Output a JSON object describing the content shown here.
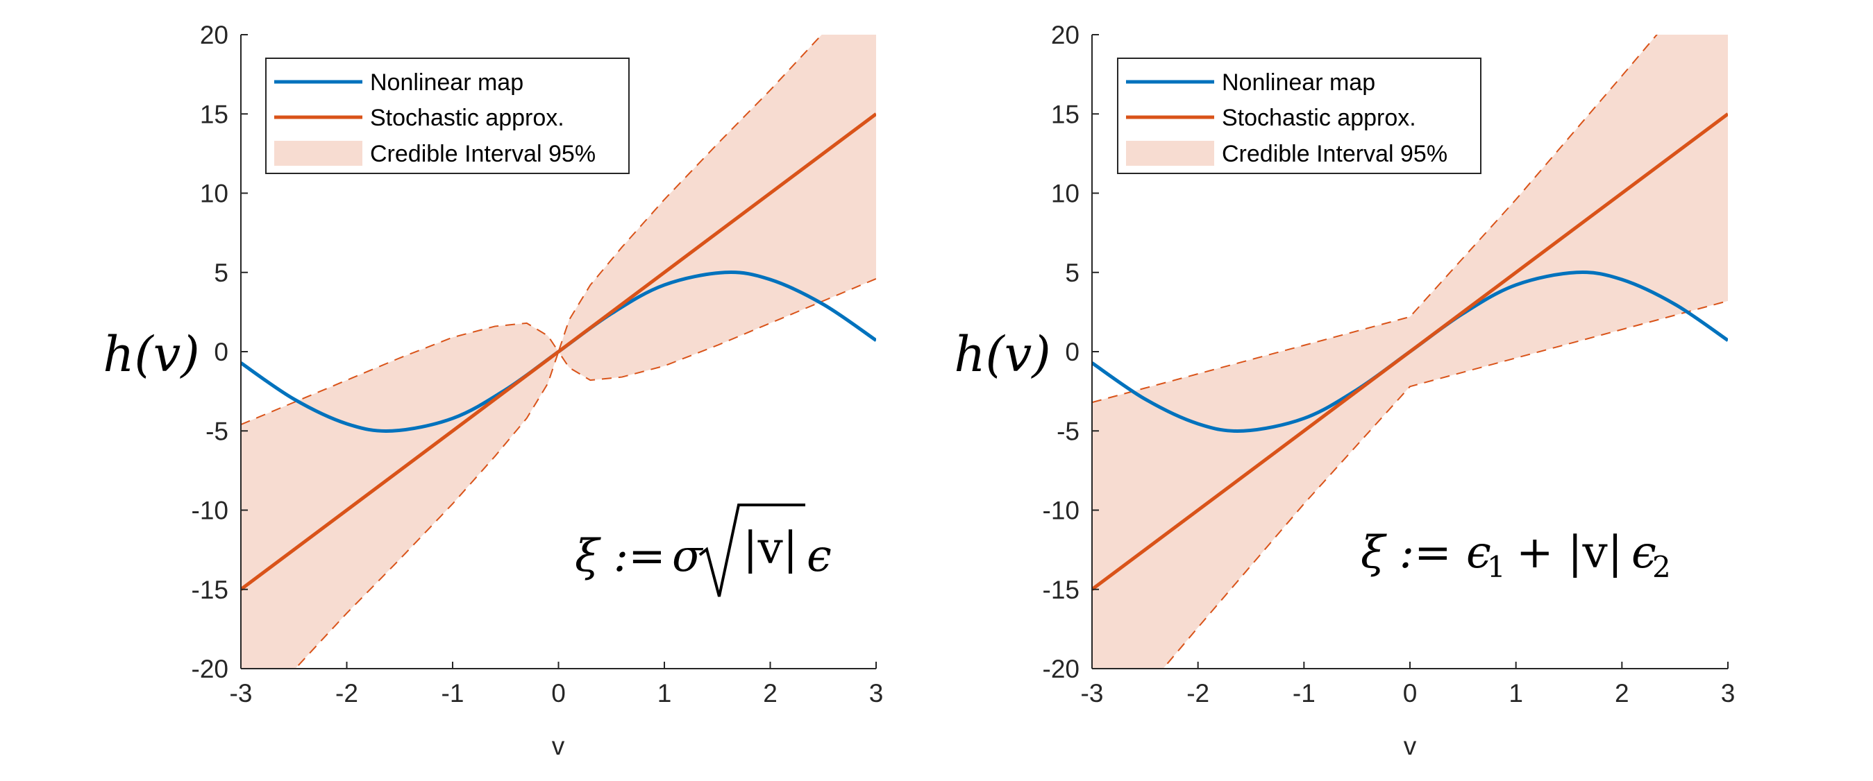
{
  "colors": {
    "nonlinear": "#0072BD",
    "stochastic": "#D95319",
    "band_fill": "#F7DCD1",
    "axis": "#262626"
  },
  "chart_data": [
    {
      "type": "line",
      "xlabel": "v",
      "ylabel": "h(v)",
      "xlim": [
        -3,
        3
      ],
      "ylim": [
        -20,
        20
      ],
      "x_ticks": [
        "-3",
        "-2",
        "-1",
        "0",
        "1",
        "2",
        "3"
      ],
      "y_ticks": [
        "20",
        "15",
        "10",
        "5",
        "0",
        "-5",
        "-10",
        "-15",
        "-20"
      ],
      "grid": false,
      "legend_position": "top-left",
      "annotation": {
        "prefix": "ξ :=",
        "sigma": "σ",
        "radicand": "|v|",
        "suffix": "ϵ"
      },
      "series": [
        {
          "name": "Nonlinear map",
          "style": "line",
          "x": [
            -3,
            -2.5,
            -2,
            -1.571,
            -1,
            -0.5,
            0,
            0.5,
            1,
            1.571,
            2,
            2.5,
            3
          ],
          "y": [
            -0.71,
            -2.99,
            -4.55,
            -5.0,
            -4.21,
            -2.4,
            0,
            2.4,
            4.21,
            5.0,
            4.55,
            2.99,
            0.71
          ]
        },
        {
          "name": "Stochastic approx.",
          "style": "line",
          "x": [
            -3,
            3
          ],
          "y": [
            -15,
            15
          ]
        },
        {
          "name": "Credible Interval 95%",
          "style": "band",
          "x": [
            -3,
            -2.5,
            -2,
            -1.5,
            -1,
            -0.6,
            -0.3,
            -0.1,
            0,
            0.1,
            0.3,
            0.6,
            1,
            1.5,
            2,
            2.5,
            3
          ],
          "upper": [
            -4.6,
            -3.2,
            -1.8,
            -0.4,
            0.9,
            1.6,
            1.8,
            1.0,
            0,
            2.0,
            4.2,
            6.6,
            9.6,
            13.1,
            16.5,
            20.1,
            23.6
          ],
          "lower": [
            -23.6,
            -20.1,
            -16.5,
            -13.1,
            -9.6,
            -6.6,
            -4.2,
            -2.0,
            0,
            -1.0,
            -1.8,
            -1.6,
            -0.9,
            0.4,
            1.8,
            3.2,
            4.6
          ]
        }
      ]
    },
    {
      "type": "line",
      "xlabel": "v",
      "ylabel": "h(v)",
      "xlim": [
        -3,
        3
      ],
      "ylim": [
        -20,
        20
      ],
      "x_ticks": [
        "-3",
        "-2",
        "-1",
        "0",
        "1",
        "2",
        "3"
      ],
      "y_ticks": [
        "20",
        "15",
        "10",
        "5",
        "0",
        "-5",
        "-10",
        "-15",
        "-20"
      ],
      "grid": false,
      "legend_position": "top-left",
      "annotation": {
        "prefix": "ξ :=",
        "eps1": "ϵ",
        "sub1": "1",
        "mid": "+ |v|",
        "eps2": "ϵ",
        "sub2": "2"
      },
      "series": [
        {
          "name": "Nonlinear map",
          "style": "line",
          "x": [
            -3,
            -2.5,
            -2,
            -1.571,
            -1,
            -0.5,
            0,
            0.5,
            1,
            1.571,
            2,
            2.5,
            3
          ],
          "y": [
            -0.71,
            -2.99,
            -4.55,
            -5.0,
            -4.21,
            -2.4,
            0,
            2.4,
            4.21,
            5.0,
            4.55,
            2.99,
            0.71
          ]
        },
        {
          "name": "Stochastic approx.",
          "style": "line",
          "x": [
            -3,
            3
          ],
          "y": [
            -15,
            15
          ]
        },
        {
          "name": "Credible Interval 95%",
          "style": "band",
          "x": [
            -3,
            -2,
            -1,
            0,
            1,
            2,
            3
          ],
          "upper": [
            -3.2,
            -1.4,
            0.4,
            2.2,
            9.6,
            17.4,
            25.3
          ],
          "lower": [
            -25.3,
            -17.4,
            -9.6,
            -2.2,
            -0.4,
            1.4,
            3.2
          ]
        }
      ]
    }
  ]
}
